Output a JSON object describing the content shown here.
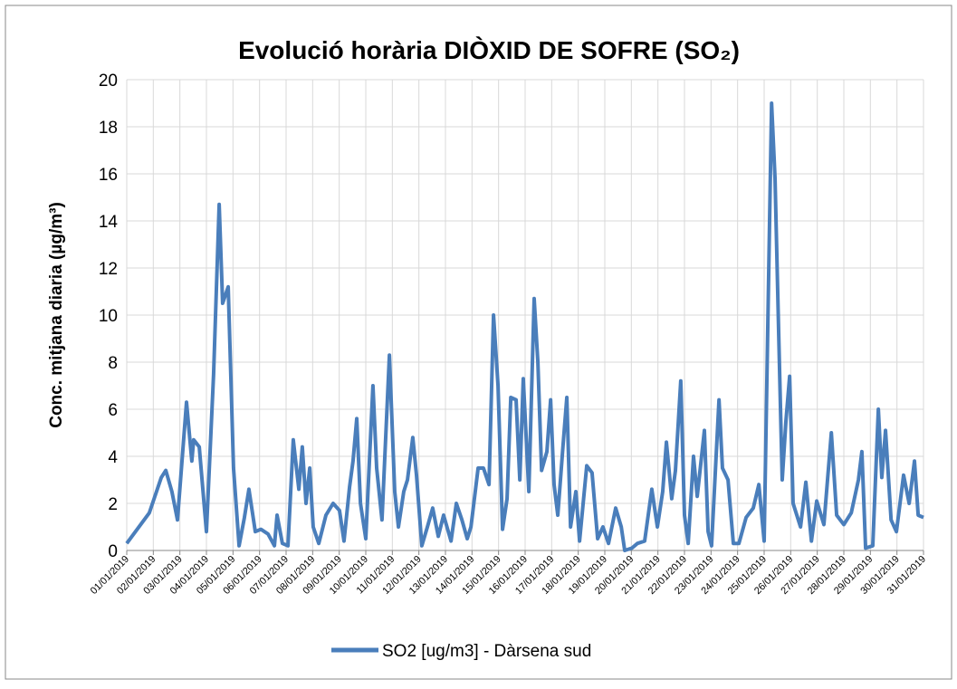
{
  "chart_data": {
    "type": "line",
    "title": "Evolució horària DIÒXID DE SOFRE (SO₂)",
    "y_label": "Conc. mitjana diaria (µg/m³)",
    "x": [
      0,
      0.85,
      1.3,
      1.47,
      1.7,
      1.91,
      2.25,
      2.45,
      2.52,
      2.73,
      3.0,
      3.27,
      3.48,
      3.61,
      3.82,
      4.02,
      4.23,
      4.43,
      4.6,
      4.84,
      5.05,
      5.32,
      5.56,
      5.66,
      5.86,
      6.07,
      6.27,
      6.48,
      6.61,
      6.75,
      6.89,
      7.02,
      7.23,
      7.5,
      7.77,
      8.01,
      8.18,
      8.39,
      8.52,
      8.66,
      8.8,
      9.0,
      9.27,
      9.41,
      9.61,
      9.89,
      10.09,
      10.23,
      10.43,
      10.57,
      10.77,
      10.91,
      11.11,
      11.32,
      11.52,
      11.73,
      11.93,
      12.21,
      12.41,
      12.62,
      12.82,
      12.96,
      13.23,
      13.43,
      13.64,
      13.81,
      13.98,
      14.15,
      14.32,
      14.46,
      14.66,
      14.8,
      14.93,
      15.14,
      15.34,
      15.48,
      15.62,
      15.82,
      15.96,
      16.09,
      16.23,
      16.43,
      16.57,
      16.71,
      16.91,
      17.05,
      17.32,
      17.52,
      17.73,
      17.93,
      18.14,
      18.41,
      18.62,
      18.75,
      19.02,
      19.23,
      19.5,
      19.77,
      19.98,
      20.18,
      20.32,
      20.52,
      20.66,
      20.86,
      21.0,
      21.14,
      21.34,
      21.48,
      21.75,
      21.89,
      22.02,
      22.3,
      22.43,
      22.64,
      22.84,
      23.05,
      23.32,
      23.59,
      23.8,
      24.0,
      24.28,
      24.41,
      24.55,
      24.68,
      24.82,
      24.96,
      25.09,
      25.37,
      25.57,
      25.78,
      25.98,
      26.25,
      26.53,
      26.73,
      27.0,
      27.28,
      27.55,
      27.68,
      27.82,
      28.09,
      28.3,
      28.43,
      28.57,
      28.78,
      28.98,
      29.25,
      29.46,
      29.66,
      29.8,
      30
    ],
    "series": [
      {
        "name": "SO2 [ug/m3] - Dàrsena sud",
        "color": "#4a7ebb",
        "values": [
          0.3,
          1.6,
          3.1,
          3.4,
          2.5,
          1.3,
          6.3,
          3.8,
          4.7,
          4.4,
          0.8,
          7.5,
          14.7,
          10.5,
          11.2,
          3.5,
          0.2,
          1.4,
          2.6,
          0.8,
          0.9,
          0.7,
          0.2,
          1.5,
          0.3,
          0.2,
          4.7,
          2.6,
          4.4,
          2.0,
          3.5,
          1.0,
          0.3,
          1.5,
          2.0,
          1.7,
          0.4,
          2.7,
          3.8,
          5.6,
          2.0,
          0.5,
          7.0,
          3.5,
          1.3,
          8.3,
          2.5,
          1.0,
          2.5,
          3.0,
          4.8,
          3.2,
          0.2,
          1.0,
          1.8,
          0.6,
          1.5,
          0.4,
          2.0,
          1.3,
          0.5,
          1.0,
          3.5,
          3.5,
          2.8,
          10.0,
          7.0,
          0.9,
          2.2,
          6.5,
          6.4,
          3.0,
          7.3,
          2.5,
          10.7,
          8.0,
          3.4,
          4.2,
          6.4,
          2.8,
          1.5,
          4.5,
          6.5,
          1.0,
          2.5,
          0.4,
          3.6,
          3.3,
          0.5,
          1.0,
          0.3,
          1.8,
          1.0,
          0,
          0.1,
          0.3,
          0.4,
          2.6,
          1.0,
          2.5,
          4.6,
          2.2,
          3.4,
          7.2,
          1.5,
          0.3,
          4.0,
          2.3,
          5.1,
          0.8,
          0.2,
          6.4,
          3.5,
          3.0,
          0.3,
          0.3,
          1.4,
          1.8,
          2.8,
          0.4,
          19.0,
          15.8,
          9.1,
          3.0,
          5.5,
          7.4,
          2.0,
          1.0,
          2.9,
          0.4,
          2.1,
          1.1,
          5.0,
          1.5,
          1.1,
          1.6,
          3.0,
          4.2,
          0.1,
          0.2,
          6.0,
          3.1,
          5.1,
          1.3,
          0.8,
          3.2,
          2.0,
          3.8,
          1.5,
          1.4
        ]
      }
    ],
    "xlim": [
      0,
      30
    ],
    "xticks": [
      {
        "value": 0,
        "label": "01/01/2019"
      },
      {
        "value": 1,
        "label": "02/01/2019"
      },
      {
        "value": 2,
        "label": "03/01/2019"
      },
      {
        "value": 3,
        "label": "04/01/2019"
      },
      {
        "value": 4,
        "label": "05/01/2019"
      },
      {
        "value": 5,
        "label": "06/01/2019"
      },
      {
        "value": 6,
        "label": "07/01/2019"
      },
      {
        "value": 7,
        "label": "08/01/2019"
      },
      {
        "value": 8,
        "label": "09/01/2019"
      },
      {
        "value": 9,
        "label": "10/01/2019"
      },
      {
        "value": 10,
        "label": "11/01/2019"
      },
      {
        "value": 11,
        "label": "12/01/2019"
      },
      {
        "value": 12,
        "label": "13/01/2019"
      },
      {
        "value": 13,
        "label": "14/01/2019"
      },
      {
        "value": 14,
        "label": "15/01/2019"
      },
      {
        "value": 15,
        "label": "16/01/2019"
      },
      {
        "value": 16,
        "label": "17/01/2019"
      },
      {
        "value": 17,
        "label": "18/01/2019"
      },
      {
        "value": 18,
        "label": "19/01/2019"
      },
      {
        "value": 19,
        "label": "20/01/2019"
      },
      {
        "value": 20,
        "label": "21/01/2019"
      },
      {
        "value": 21,
        "label": "22/01/2019"
      },
      {
        "value": 22,
        "label": "23/01/2019"
      },
      {
        "value": 23,
        "label": "24/01/2019"
      },
      {
        "value": 24,
        "label": "25/01/2019"
      },
      {
        "value": 25,
        "label": "26/01/2019"
      },
      {
        "value": 26,
        "label": "27/01/2019"
      },
      {
        "value": 27,
        "label": "28/01/2019"
      },
      {
        "value": 28,
        "label": "29/01/2019"
      },
      {
        "value": 29,
        "label": "30/01/2019"
      },
      {
        "value": 30,
        "label": "31/01/2019"
      }
    ],
    "ylim": [
      0,
      20
    ],
    "yticks": [
      0,
      2,
      4,
      6,
      8,
      10,
      12,
      14,
      16,
      18,
      20
    ],
    "grid": true
  }
}
